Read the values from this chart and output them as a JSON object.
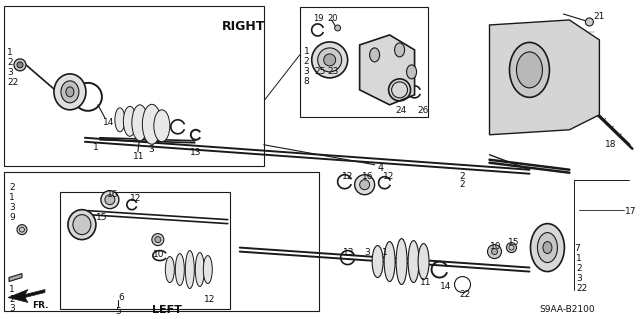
{
  "bg_color": "#ffffff",
  "line_color": "#1a1a1a",
  "text_color": "#111111",
  "diagram_code": "S9AA-B2100",
  "right_label": "RIGHT",
  "left_label": "LEFT",
  "fr_label": "FR.",
  "figsize": [
    6.4,
    3.19
  ],
  "dpi": 100
}
